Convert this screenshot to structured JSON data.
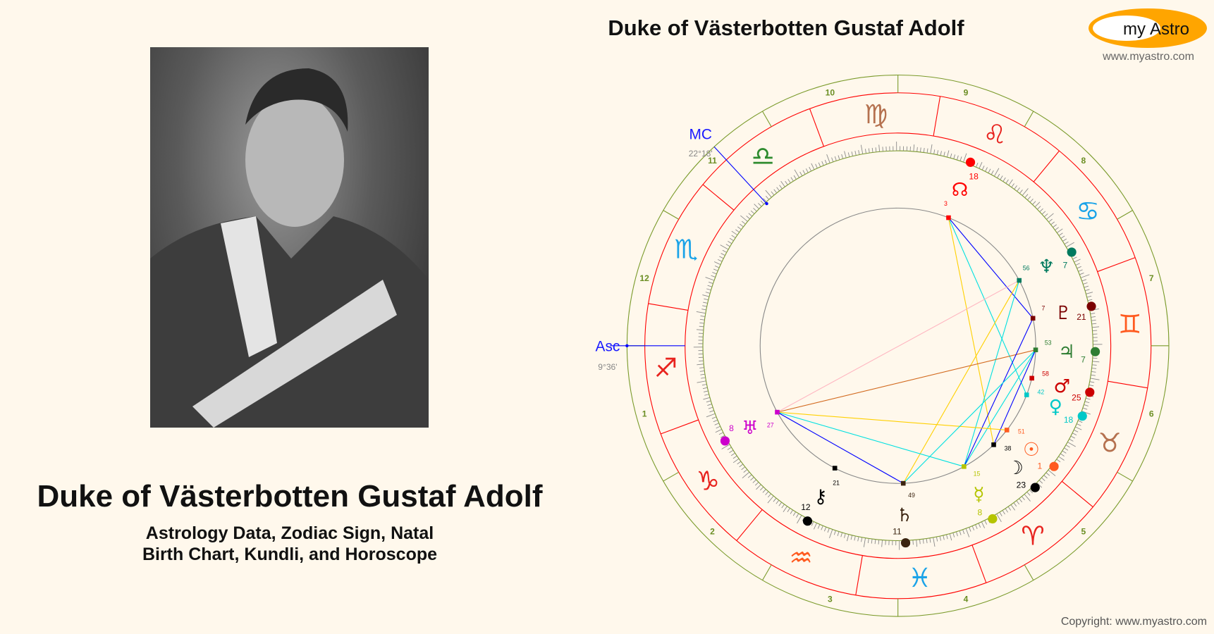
{
  "left": {
    "title": "Duke of Västerbotten Gustaf Adolf",
    "subtitle_line1": "Astrology Data, Zodiac Sign, Natal",
    "subtitle_line2": "Birth Chart, Kundli, and Horoscope"
  },
  "header": {
    "title": "Duke of Västerbotten Gustaf Adolf",
    "logo_text_my": "my",
    "logo_text_astro": "Astro",
    "logo_url": "www.myastro.com",
    "logo_colors": {
      "ring": "#ffa500",
      "inner": "#ffffff"
    }
  },
  "footer": {
    "copyright": "Copyright: www.myastro.com"
  },
  "chart_data": {
    "type": "natal-wheel",
    "ascendant": {
      "label": "Asc",
      "degree_text": "9°36'",
      "longitude": 249.6
    },
    "midheaven": {
      "label": "MC",
      "degree_text": "22°18'",
      "longitude": 202.3
    },
    "house_numbers": [
      "1",
      "2",
      "3",
      "4",
      "5",
      "6",
      "7",
      "8",
      "9",
      "10",
      "11",
      "12"
    ],
    "signs": [
      {
        "name": "Aries",
        "glyph": "♈",
        "color": "#e8231e"
      },
      {
        "name": "Taurus",
        "glyph": "♉",
        "color": "#b5714f"
      },
      {
        "name": "Gemini",
        "glyph": "♊",
        "color": "#ff5a1f"
      },
      {
        "name": "Cancer",
        "glyph": "♋",
        "color": "#1aa3e8"
      },
      {
        "name": "Leo",
        "glyph": "♌",
        "color": "#e8231e"
      },
      {
        "name": "Virgo",
        "glyph": "♍",
        "color": "#b5714f"
      },
      {
        "name": "Libra",
        "glyph": "♎",
        "color": "#2e8b2e"
      },
      {
        "name": "Scorpio",
        "glyph": "♏",
        "color": "#1aa3e8"
      },
      {
        "name": "Sagittarius",
        "glyph": "♐",
        "color": "#e8231e"
      },
      {
        "name": "Capricorn",
        "glyph": "♑",
        "color": "#e8231e"
      },
      {
        "name": "Aquarius",
        "glyph": "♒",
        "color": "#ff5a1f"
      },
      {
        "name": "Pisces",
        "glyph": "♓",
        "color": "#1aa3e8"
      }
    ],
    "planets": [
      {
        "name": "Sun",
        "glyph": "☉",
        "deg": "1",
        "min": "51",
        "longitude": 31.85,
        "color": "#ff5a1f"
      },
      {
        "name": "Moon",
        "glyph": "☽",
        "deg": "23",
        "min": "38",
        "longitude": 23.63,
        "color": "#000000"
      },
      {
        "name": "Mercury",
        "glyph": "☿",
        "deg": "8",
        "min": "15",
        "longitude": 8.25,
        "color": "#b5c400"
      },
      {
        "name": "Venus",
        "glyph": "♀",
        "deg": "18",
        "min": "42",
        "longitude": 48.7,
        "color": "#00c8c8"
      },
      {
        "name": "Mars",
        "glyph": "♂",
        "deg": "25",
        "min": "58",
        "longitude": 55.97,
        "color": "#cc0000"
      },
      {
        "name": "Jupiter",
        "glyph": "♃",
        "deg": "7",
        "min": "53",
        "longitude": 67.88,
        "color": "#2e7d32"
      },
      {
        "name": "Saturn",
        "glyph": "♄",
        "deg": "11",
        "min": "49",
        "longitude": 341.82,
        "color": "#3b2410"
      },
      {
        "name": "Uranus",
        "glyph": "♅",
        "deg": "8",
        "min": "27",
        "longitude": 278.45,
        "color": "#cc00cc"
      },
      {
        "name": "Neptune",
        "glyph": "♆",
        "deg": "7",
        "min": "56",
        "longitude": 97.93,
        "color": "#007a5e"
      },
      {
        "name": "Pluto",
        "glyph": "♇",
        "deg": "21",
        "min": "7",
        "longitude": 81.12,
        "color": "#7a0000"
      },
      {
        "name": "North Node",
        "glyph": "☊",
        "deg": "18",
        "min": "3",
        "longitude": 138.05,
        "color": "#ff0000"
      },
      {
        "name": "Chiron",
        "glyph": "⚷",
        "deg": "12",
        "min": "21",
        "longitude": 312.35,
        "color": "#000000"
      }
    ],
    "aspects": [
      {
        "from": "North Node",
        "to": "Pluto",
        "color": "#0000ff"
      },
      {
        "from": "North Node",
        "to": "Venus",
        "color": "#00e0e0"
      },
      {
        "from": "North Node",
        "to": "Moon",
        "color": "#ffd000"
      },
      {
        "from": "Neptune",
        "to": "Uranus",
        "color": "#ffb6c1"
      },
      {
        "from": "Neptune",
        "to": "Saturn",
        "color": "#ffd000"
      },
      {
        "from": "Neptune",
        "to": "Mercury",
        "color": "#00e0e0"
      },
      {
        "from": "Jupiter",
        "to": "Uranus",
        "color": "#d2691e"
      },
      {
        "from": "Jupiter",
        "to": "Mercury",
        "color": "#00e0e0"
      },
      {
        "from": "Jupiter",
        "to": "Moon",
        "color": "#0000ff"
      },
      {
        "from": "Pluto",
        "to": "Mercury",
        "color": "#0000ff"
      },
      {
        "from": "Uranus",
        "to": "Sun",
        "color": "#ffd000"
      },
      {
        "from": "Uranus",
        "to": "Mercury",
        "color": "#00e0e0"
      },
      {
        "from": "Uranus",
        "to": "Saturn",
        "color": "#0000ff"
      },
      {
        "from": "Saturn",
        "to": "Jupiter",
        "color": "#00e0e0"
      }
    ]
  }
}
